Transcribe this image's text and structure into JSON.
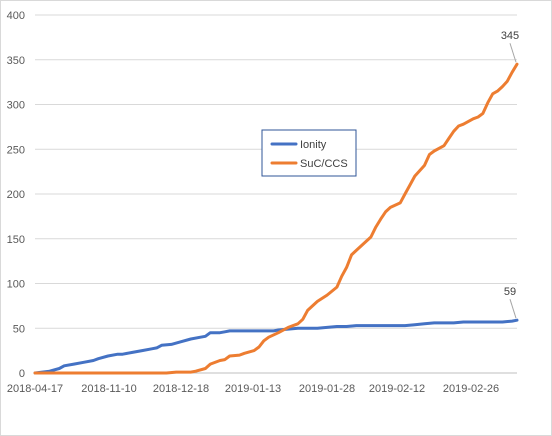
{
  "chart_data": {
    "type": "line",
    "title": "",
    "xlabel": "",
    "ylabel": "",
    "ylim": [
      0,
      400
    ],
    "yticks": [
      0,
      50,
      100,
      150,
      200,
      250,
      300,
      350,
      400
    ],
    "x_tick_labels": [
      "2018-04-17",
      "2018-11-10",
      "2018-12-18",
      "2019-01-13",
      "2019-01-28",
      "2019-02-12",
      "2019-02-26"
    ],
    "grid": true,
    "legend_position": "center",
    "n_points": 100,
    "series": [
      {
        "name": "Ionity",
        "color": "#4472c4",
        "points": [
          [
            0,
            0
          ],
          [
            3,
            2
          ],
          [
            5,
            5
          ],
          [
            6,
            8
          ],
          [
            8,
            10
          ],
          [
            10,
            12
          ],
          [
            12,
            14
          ],
          [
            13,
            16
          ],
          [
            15,
            19
          ],
          [
            17,
            21
          ],
          [
            18,
            21
          ],
          [
            20,
            23
          ],
          [
            22,
            25
          ],
          [
            24,
            27
          ],
          [
            25,
            28
          ],
          [
            26,
            31
          ],
          [
            28,
            32
          ],
          [
            30,
            35
          ],
          [
            32,
            38
          ],
          [
            34,
            40
          ],
          [
            35,
            41
          ],
          [
            36,
            45
          ],
          [
            38,
            45
          ],
          [
            39,
            46
          ],
          [
            40,
            47
          ],
          [
            47,
            47
          ],
          [
            48,
            47
          ],
          [
            49,
            47
          ],
          [
            50,
            48
          ],
          [
            52,
            49
          ],
          [
            54,
            50
          ],
          [
            55,
            50
          ],
          [
            56,
            50
          ],
          [
            58,
            50
          ],
          [
            60,
            51
          ],
          [
            62,
            52
          ],
          [
            64,
            52
          ],
          [
            66,
            53
          ],
          [
            68,
            53
          ],
          [
            74,
            53
          ],
          [
            76,
            53
          ],
          [
            78,
            54
          ],
          [
            80,
            55
          ],
          [
            82,
            56
          ],
          [
            84,
            56
          ],
          [
            86,
            56
          ],
          [
            88,
            57
          ],
          [
            90,
            57
          ],
          [
            96,
            57
          ],
          [
            98,
            58
          ],
          [
            99,
            59
          ]
        ],
        "end_label": "59"
      },
      {
        "name": "SuC/CCS",
        "color": "#ed7d31",
        "points": [
          [
            0,
            0
          ],
          [
            26,
            0
          ],
          [
            27,
            0
          ],
          [
            29,
            1
          ],
          [
            30,
            1
          ],
          [
            32,
            1
          ],
          [
            33,
            2
          ],
          [
            35,
            5
          ],
          [
            36,
            10
          ],
          [
            38,
            14
          ],
          [
            39,
            15
          ],
          [
            40,
            19
          ],
          [
            42,
            20
          ],
          [
            43,
            22
          ],
          [
            45,
            25
          ],
          [
            46,
            29
          ],
          [
            47,
            36
          ],
          [
            48,
            40
          ],
          [
            50,
            45
          ],
          [
            52,
            51
          ],
          [
            54,
            55
          ],
          [
            55,
            60
          ],
          [
            56,
            70
          ],
          [
            58,
            80
          ],
          [
            60,
            87
          ],
          [
            62,
            96
          ],
          [
            63,
            108
          ],
          [
            64,
            118
          ],
          [
            65,
            132
          ],
          [
            66,
            137
          ],
          [
            68,
            147
          ],
          [
            69,
            152
          ],
          [
            70,
            163
          ],
          [
            71,
            172
          ],
          [
            72,
            180
          ],
          [
            73,
            185
          ],
          [
            75,
            190
          ],
          [
            76,
            200
          ],
          [
            77,
            210
          ],
          [
            78,
            220
          ],
          [
            80,
            232
          ],
          [
            81,
            244
          ],
          [
            82,
            248
          ],
          [
            84,
            254
          ],
          [
            85,
            262
          ],
          [
            86,
            270
          ],
          [
            87,
            276
          ],
          [
            88,
            278
          ],
          [
            90,
            284
          ],
          [
            91,
            286
          ],
          [
            92,
            290
          ],
          [
            93,
            302
          ],
          [
            94,
            312
          ],
          [
            95,
            315
          ],
          [
            96,
            320
          ],
          [
            97,
            326
          ],
          [
            98,
            336
          ],
          [
            99,
            345
          ]
        ],
        "end_label": "345"
      }
    ]
  }
}
